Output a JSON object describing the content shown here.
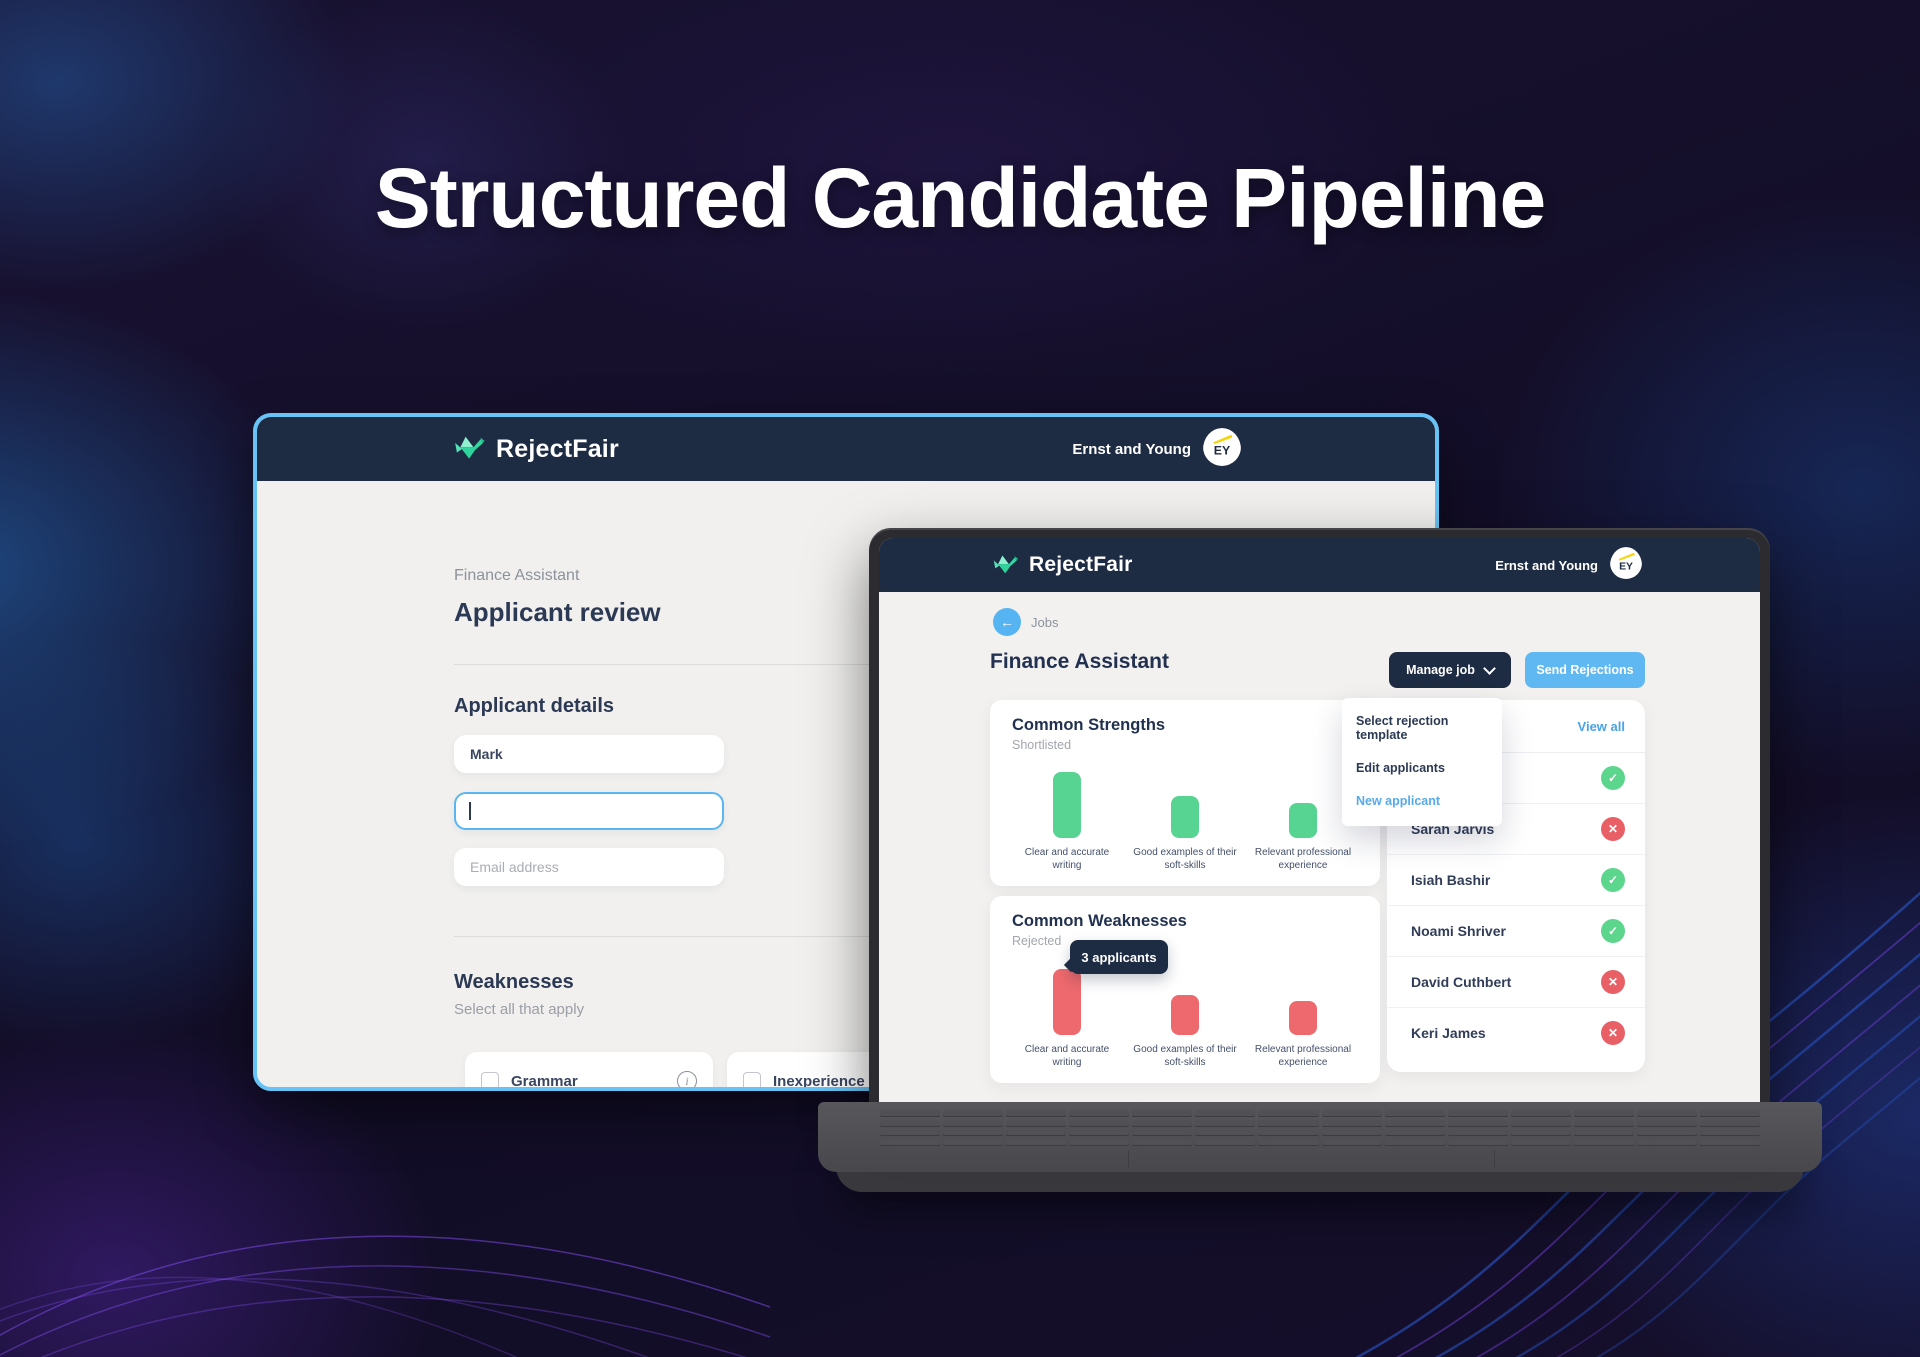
{
  "hero": {
    "title": "Structured Candidate Pipeline"
  },
  "brand": {
    "name": "RejectFair",
    "org": "Ernst and Young",
    "avatar_initials": "EY"
  },
  "review_window": {
    "job_label": "Finance Assistant",
    "title": "Applicant review",
    "details_heading": "Applicant details",
    "first_name_value": "Mark",
    "last_name_value": "",
    "email_placeholder": "Email address",
    "weaknesses_heading": "Weaknesses",
    "weaknesses_subtitle": "Select all that apply",
    "weakness_options": [
      {
        "label": "Grammar",
        "checked": false,
        "has_info": true
      },
      {
        "label": "Inexperience",
        "checked": false,
        "has_info": false
      }
    ]
  },
  "dashboard": {
    "back_label": "Jobs",
    "job_title": "Finance Assistant",
    "manage_button": "Manage job",
    "send_button": "Send Rejections",
    "menu_items": [
      {
        "label": "Select rejection template",
        "accent": false
      },
      {
        "label": "Edit applicants",
        "accent": false
      },
      {
        "label": "New applicant",
        "accent": true
      }
    ],
    "applicants_panel": {
      "view_all_label": "View all",
      "rows": [
        {
          "name": "",
          "status": "accepted"
        },
        {
          "name": "Sarah Jarvis",
          "status": "rejected"
        },
        {
          "name": "Isiah Bashir",
          "status": "accepted"
        },
        {
          "name": "Noami Shriver",
          "status": "accepted"
        },
        {
          "name": "David Cuthbert",
          "status": "rejected"
        },
        {
          "name": "Keri James",
          "status": "rejected"
        }
      ]
    }
  },
  "chart_data": [
    {
      "type": "bar",
      "title": "Common Strengths",
      "subtitle": "Shortlisted",
      "categories": [
        "Clear and accurate writing",
        "Good examples of their soft-skills",
        "Relevant professional experience"
      ],
      "values": [
        3,
        1.9,
        1.6
      ],
      "unit": "applicants (estimated from relative bar heights)",
      "color": "#57d492",
      "grid": false,
      "axes_labeled": false,
      "legend": "none"
    },
    {
      "type": "bar",
      "title": "Common Weaknesses",
      "subtitle": "Rejected",
      "categories": [
        "Clear and accurate writing",
        "Good examples of their soft-skills",
        "Relevant professional experience"
      ],
      "values": [
        3,
        1.8,
        1.55
      ],
      "unit": "applicants (first bar labeled by tooltip)",
      "color": "#ed696d",
      "annotations": [
        {
          "bar_index": 0,
          "label": "3 applicants"
        }
      ],
      "grid": false,
      "axes_labeled": false,
      "legend": "none"
    }
  ],
  "colors": {
    "header_navy": "#1d2b43",
    "window_border_blue": "#67c3f5",
    "accent_blue": "#60b8f2",
    "link_blue": "#4aa3e8",
    "green": "#5cd68c",
    "red": "#e85f66",
    "bg_light": "#f1f0ee",
    "avatar_yellow": "#f5d40a"
  }
}
